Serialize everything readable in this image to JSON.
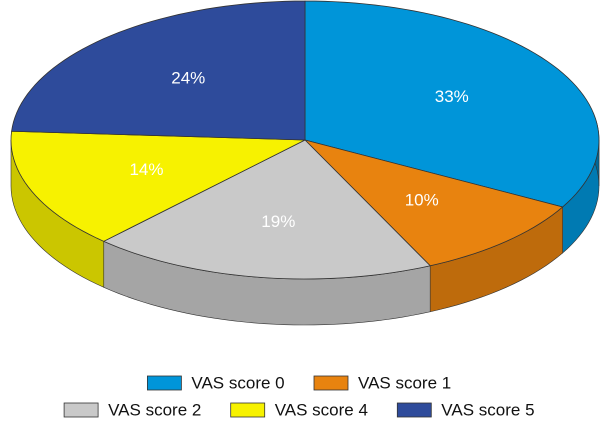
{
  "chart_data": {
    "type": "pie3d",
    "categories": [
      "VAS score 0",
      "VAS score 1",
      "VAS score 2",
      "VAS score 4",
      "VAS score 5"
    ],
    "values": [
      33,
      10,
      19,
      14,
      24
    ],
    "value_labels": [
      "33%",
      "10%",
      "19%",
      "14%",
      "24%"
    ],
    "colors": [
      "#0095d9",
      "#e8830f",
      "#c9c9c9",
      "#f7f200",
      "#2e4b9b"
    ],
    "legend": "bottom"
  }
}
